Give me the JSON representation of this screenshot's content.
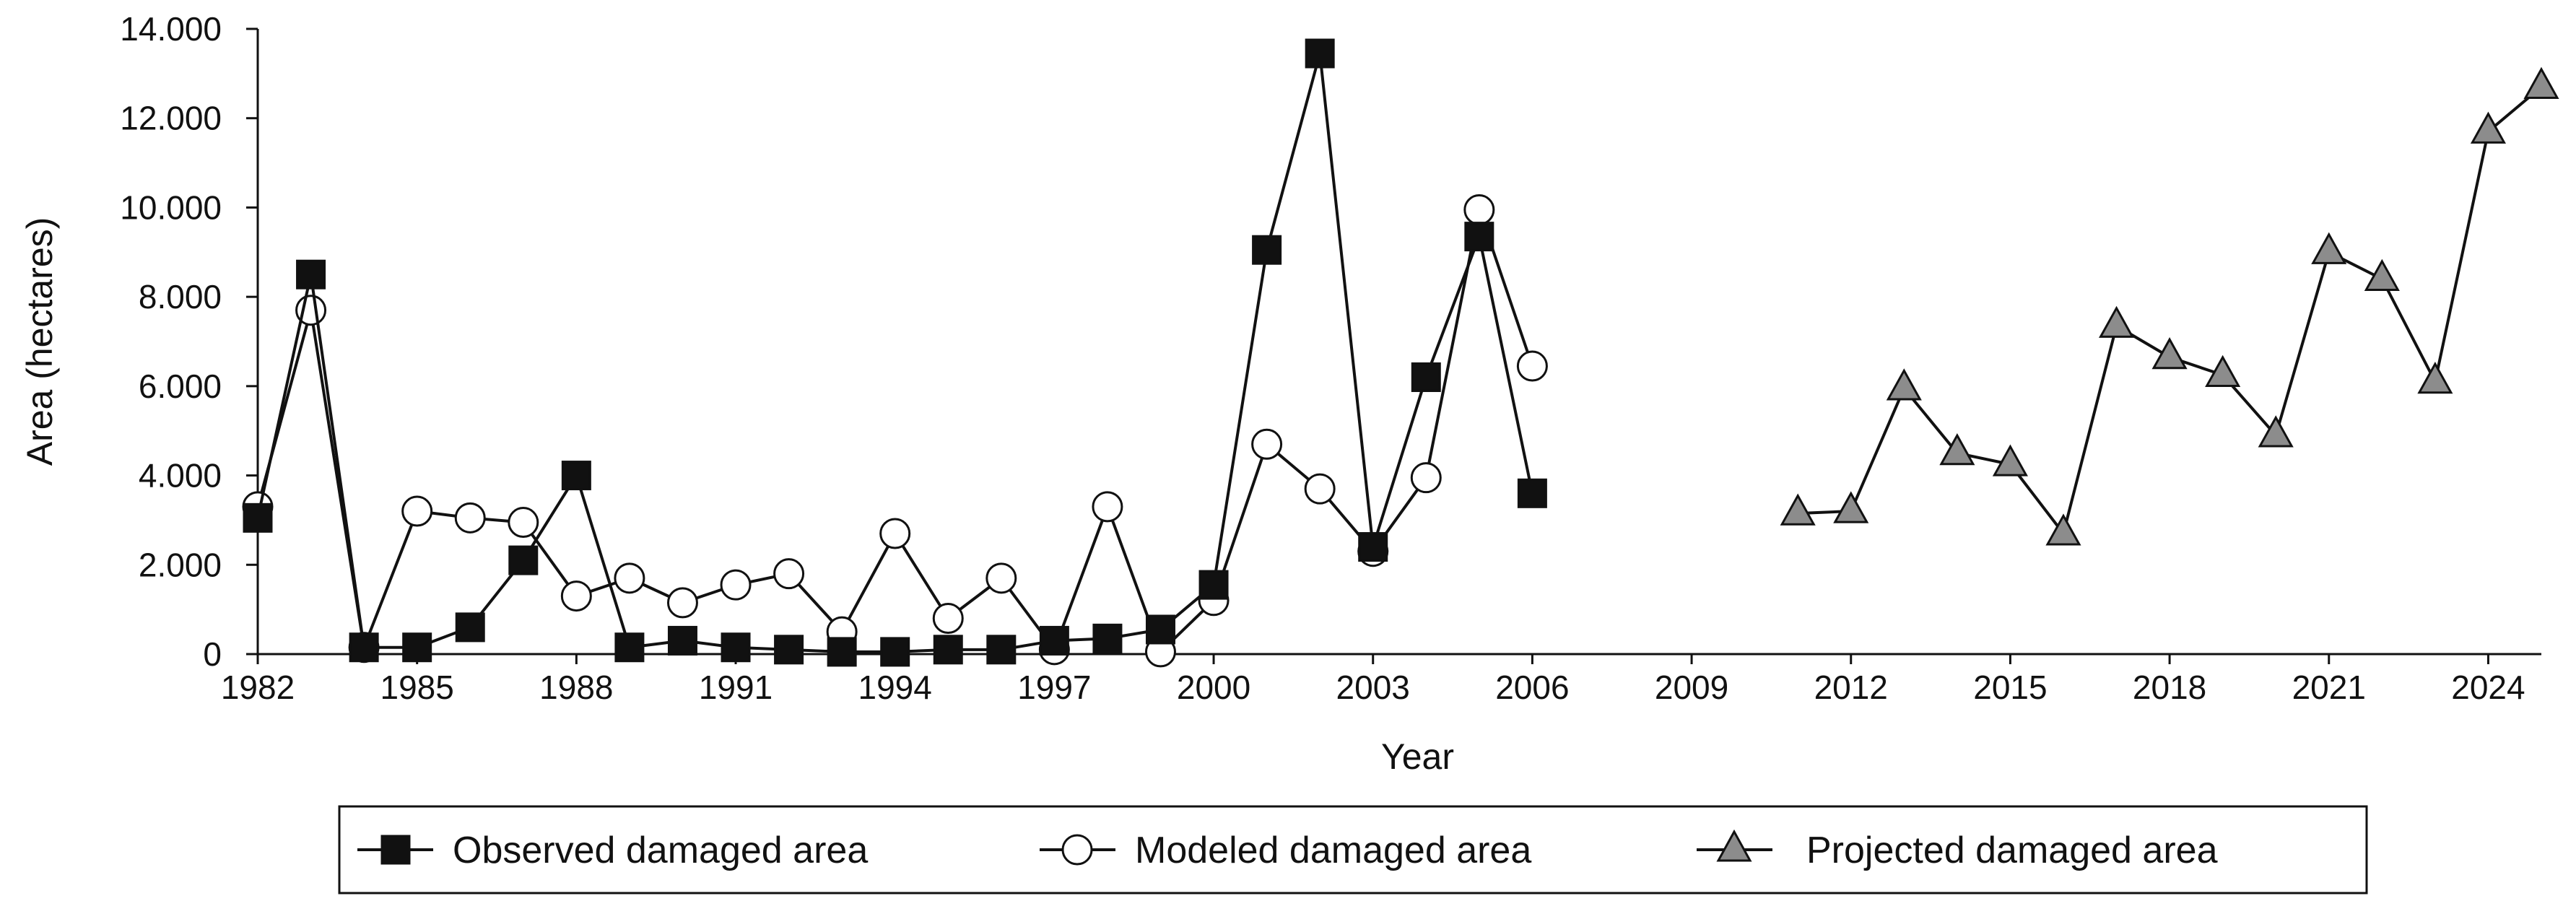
{
  "chart_data": {
    "type": "line",
    "title": "",
    "xlabel": "Year",
    "ylabel": "Area (hectares)",
    "xlim": [
      1982,
      2025
    ],
    "ylim": [
      0,
      14000
    ],
    "x_ticks": [
      1982,
      1985,
      1988,
      1991,
      1994,
      1997,
      2000,
      2003,
      2006,
      2009,
      2012,
      2015,
      2018,
      2021,
      2024
    ],
    "y_ticks": [
      0,
      2000,
      4000,
      6000,
      8000,
      10000,
      12000,
      14000
    ],
    "y_tick_labels": [
      "0",
      "2.000",
      "4.000",
      "6.000",
      "8.000",
      "10.000",
      "12.000",
      "14.000"
    ],
    "grid": false,
    "legend_position": "bottom",
    "series": [
      {
        "name": "Observed damaged area",
        "marker": "square",
        "fill": "#111111",
        "x": [
          1982,
          1983,
          1984,
          1985,
          1986,
          1987,
          1988,
          1989,
          1990,
          1991,
          1992,
          1993,
          1994,
          1995,
          1996,
          1997,
          1998,
          1999,
          2000,
          2001,
          2002,
          2003,
          2004,
          2005,
          2006
        ],
        "values": [
          3050,
          8500,
          150,
          150,
          600,
          2100,
          4000,
          150,
          300,
          150,
          100,
          50,
          50,
          100,
          100,
          300,
          350,
          550,
          1550,
          9050,
          13450,
          2400,
          6200,
          9350,
          3600
        ]
      },
      {
        "name": "Modeled damaged area",
        "marker": "circle",
        "fill": "#ffffff",
        "x": [
          1982,
          1983,
          1984,
          1985,
          1986,
          1987,
          1988,
          1989,
          1990,
          1991,
          1992,
          1993,
          1994,
          1995,
          1996,
          1997,
          1998,
          1999,
          2000,
          2001,
          2002,
          2003,
          2004,
          2005,
          2006
        ],
        "values": [
          3300,
          7700,
          150,
          3200,
          3050,
          2950,
          1300,
          1700,
          1150,
          1550,
          1800,
          500,
          2700,
          800,
          1700,
          100,
          3300,
          50,
          1200,
          4700,
          3700,
          2300,
          3950,
          9950,
          6450
        ]
      },
      {
        "name": "Projected damaged area",
        "marker": "triangle",
        "fill": "#8c8c8c",
        "x": [
          2011,
          2012,
          2013,
          2014,
          2015,
          2016,
          2017,
          2018,
          2019,
          2020,
          2021,
          2022,
          2023,
          2024,
          2025
        ],
        "values": [
          3150,
          3200,
          5950,
          4500,
          4250,
          2700,
          7350,
          6650,
          6250,
          4900,
          9000,
          8400,
          6100,
          11700,
          12700
        ]
      }
    ]
  }
}
